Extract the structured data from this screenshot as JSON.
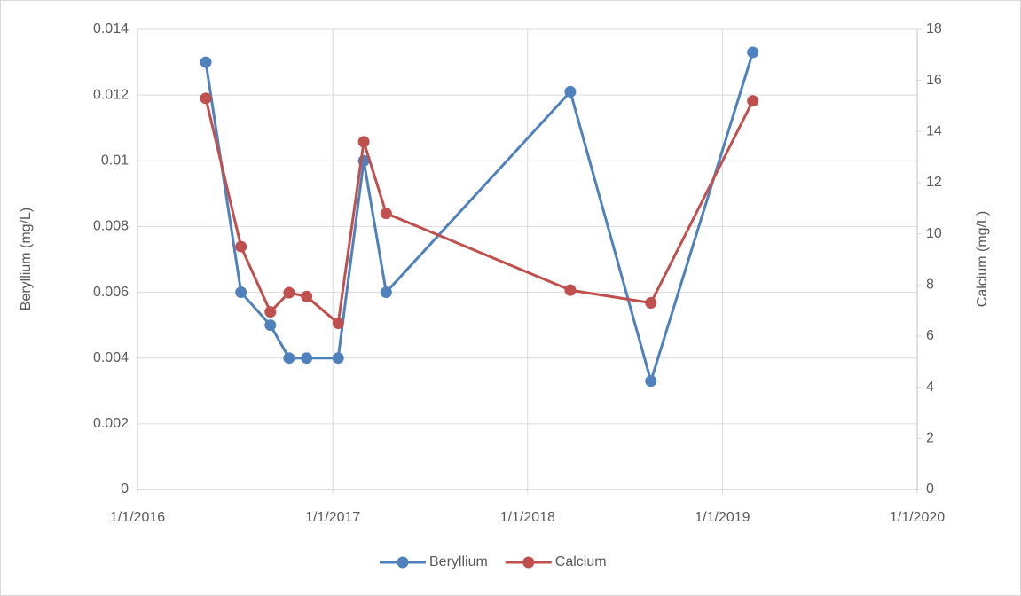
{
  "chart_data": {
    "type": "line",
    "x": [
      "5/8/2016",
      "7/13/2016",
      "9/6/2016",
      "10/11/2016",
      "11/13/2016",
      "1/11/2017",
      "2/28/2017",
      "4/11/2017",
      "3/22/2018",
      "8/20/2018",
      "2/27/2019"
    ],
    "series": [
      {
        "name": "Beryllium",
        "color": "#4f81bd",
        "axis": "y",
        "values": [
          0.013,
          0.006,
          0.005,
          0.004,
          0.004,
          0.004,
          0.01,
          0.006,
          0.0121,
          0.0033,
          0.0133
        ]
      },
      {
        "name": "Calcium",
        "color": "#c0504d",
        "axis": "y2",
        "values": [
          15.3,
          9.5,
          6.95,
          7.7,
          7.55,
          6.5,
          13.6,
          10.8,
          7.8,
          7.3,
          15.2
        ]
      }
    ],
    "y_label": "Beryllium (mg/L)",
    "y2_label": "Calcium (mg/L)",
    "xlim": [
      "1/1/2016",
      "1/1/2020"
    ],
    "xticks": [
      "1/1/2016",
      "1/1/2017",
      "1/1/2018",
      "1/1/2019",
      "1/1/2020"
    ],
    "ylim": [
      0,
      0.014
    ],
    "yticks": [
      0,
      0.002,
      0.004,
      0.006,
      0.008,
      0.01,
      0.012,
      0.014
    ],
    "y2lim": [
      0,
      18
    ],
    "y2ticks": [
      0,
      2,
      4,
      6,
      8,
      10,
      12,
      14,
      16,
      18
    ],
    "grid": true,
    "legend": "bottom"
  }
}
